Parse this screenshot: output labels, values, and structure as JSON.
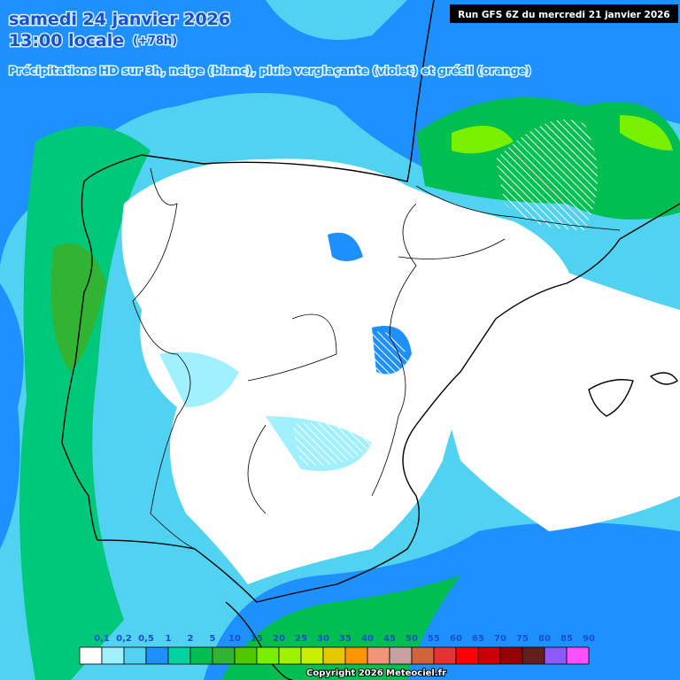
{
  "header": {
    "date": "samedi 24 janvier 2026",
    "time": "13:00 locale",
    "lead": "(+78h)",
    "run": "Run GFS 6Z du mercredi 21 janvier 2026",
    "subtitle": "Précipitations HD sur 3h, neige (blanc), pluie verglaçante (violet) et grésil (orange)"
  },
  "legend": {
    "items": [
      {
        "label": "0,1",
        "color": "#ffffff"
      },
      {
        "label": "0,2",
        "color": "#a0f0ff"
      },
      {
        "label": "0,5",
        "color": "#50d2f0"
      },
      {
        "label": "1",
        "color": "#1e90ff"
      },
      {
        "label": "2",
        "color": "#00d2a0"
      },
      {
        "label": "5",
        "color": "#00be50"
      },
      {
        "label": "10",
        "color": "#32b432"
      },
      {
        "label": "15",
        "color": "#50c800"
      },
      {
        "label": "20",
        "color": "#78f000"
      },
      {
        "label": "25",
        "color": "#a0f000"
      },
      {
        "label": "30",
        "color": "#c8f000"
      },
      {
        "label": "35",
        "color": "#e6c800"
      },
      {
        "label": "40",
        "color": "#ff9600"
      },
      {
        "label": "45",
        "color": "#f09678"
      },
      {
        "label": "50",
        "color": "#c8a0a0"
      },
      {
        "label": "55",
        "color": "#d2643c"
      },
      {
        "label": "60",
        "color": "#e63232"
      },
      {
        "label": "65",
        "color": "#ff0000"
      },
      {
        "label": "70",
        "color": "#c80000"
      },
      {
        "label": "75",
        "color": "#960000"
      },
      {
        "label": "80",
        "color": "#641e1e"
      },
      {
        "label": "85",
        "color": "#8c5aff"
      },
      {
        "label": "90",
        "color": "#ff50ff"
      }
    ]
  },
  "copyright": "Copyright 2026 Meteociel.fr"
}
